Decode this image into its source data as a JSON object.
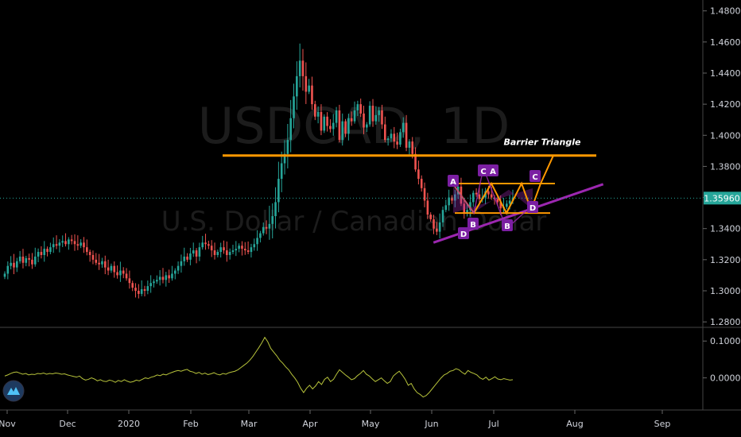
{
  "chart_data": {
    "type": "candlestick",
    "symbol_watermark": "USDCAD, 1D",
    "name_watermark": "U.S. Dollar / Canadian Dollar",
    "price_axis": {
      "ticks": [
        "1.48000",
        "1.46000",
        "1.44000",
        "1.42000",
        "1.40000",
        "1.38000",
        "1.36000",
        "1.34000",
        "1.32000",
        "1.30000",
        "1.28000"
      ],
      "ylim": [
        1.277,
        1.487
      ],
      "current_price": "1.35960"
    },
    "oscillator_axis": {
      "ticks": [
        "0.10000",
        "0.00000"
      ],
      "ylim": [
        -0.085,
        0.135
      ]
    },
    "time_axis": {
      "labels": [
        "Nov",
        "Dec",
        "2020",
        "Feb",
        "Mar",
        "Apr",
        "May",
        "Jun",
        "Jul",
        "Aug",
        "Sep"
      ]
    },
    "price_closes": [
      1.311,
      1.316,
      1.318,
      1.315,
      1.319,
      1.322,
      1.318,
      1.321,
      1.32,
      1.317,
      1.322,
      1.325,
      1.323,
      1.327,
      1.325,
      1.328,
      1.33,
      1.329,
      1.331,
      1.332,
      1.33,
      1.333,
      1.332,
      1.33,
      1.329,
      1.331,
      1.328,
      1.325,
      1.323,
      1.32,
      1.318,
      1.317,
      1.319,
      1.315,
      1.313,
      1.316,
      1.312,
      1.31,
      1.313,
      1.311,
      1.308,
      1.305,
      1.302,
      1.3,
      1.298,
      1.301,
      1.3,
      1.303,
      1.305,
      1.306,
      1.307,
      1.309,
      1.307,
      1.31,
      1.308,
      1.311,
      1.313,
      1.316,
      1.319,
      1.322,
      1.32,
      1.324,
      1.326,
      1.322,
      1.328,
      1.331,
      1.33,
      1.329,
      1.326,
      1.323,
      1.325,
      1.328,
      1.326,
      1.323,
      1.325,
      1.326,
      1.327,
      1.329,
      1.327,
      1.326,
      1.325,
      1.328,
      1.33,
      1.334,
      1.337,
      1.341,
      1.34,
      1.343,
      1.348,
      1.357,
      1.372,
      1.382,
      1.388,
      1.397,
      1.411,
      1.425,
      1.438,
      1.448,
      1.438,
      1.428,
      1.432,
      1.42,
      1.412,
      1.415,
      1.403,
      1.412,
      1.406,
      1.404,
      1.408,
      1.416,
      1.397,
      1.409,
      1.401,
      1.411,
      1.409,
      1.416,
      1.42,
      1.414,
      1.405,
      1.407,
      1.419,
      1.409,
      1.413,
      1.416,
      1.407,
      1.397,
      1.398,
      1.401,
      1.396,
      1.394,
      1.402,
      1.408,
      1.392,
      1.396,
      1.388,
      1.378,
      1.372,
      1.366,
      1.358,
      1.349,
      1.346,
      1.34,
      1.338,
      1.344,
      1.352,
      1.355,
      1.36,
      1.358,
      1.362,
      1.367,
      1.356,
      1.35,
      1.352,
      1.357,
      1.363,
      1.362,
      1.359,
      1.36,
      1.364,
      1.362,
      1.36,
      1.359,
      1.357,
      1.353,
      1.354,
      1.356,
      1.358,
      1.36
    ],
    "oscillator_values": [
      0.005,
      0.008,
      0.012,
      0.015,
      0.016,
      0.013,
      0.01,
      0.012,
      0.008,
      0.01,
      0.009,
      0.012,
      0.011,
      0.013,
      0.01,
      0.012,
      0.011,
      0.013,
      0.012,
      0.01,
      0.011,
      0.008,
      0.006,
      0.004,
      0.002,
      0.005,
      -0.002,
      -0.006,
      -0.004,
      0.0,
      -0.003,
      -0.008,
      -0.005,
      -0.009,
      -0.01,
      -0.006,
      -0.008,
      -0.012,
      -0.007,
      -0.01,
      -0.005,
      -0.009,
      -0.012,
      -0.01,
      -0.006,
      -0.008,
      -0.004,
      0.0,
      -0.002,
      0.002,
      0.004,
      0.008,
      0.006,
      0.01,
      0.008,
      0.012,
      0.015,
      0.018,
      0.02,
      0.018,
      0.021,
      0.023,
      0.018,
      0.016,
      0.012,
      0.015,
      0.01,
      0.013,
      0.009,
      0.011,
      0.014,
      0.01,
      0.008,
      0.012,
      0.01,
      0.014,
      0.016,
      0.018,
      0.022,
      0.028,
      0.034,
      0.04,
      0.048,
      0.058,
      0.07,
      0.082,
      0.095,
      0.11,
      0.098,
      0.08,
      0.07,
      0.06,
      0.048,
      0.04,
      0.03,
      0.022,
      0.01,
      0.0,
      -0.012,
      -0.028,
      -0.04,
      -0.028,
      -0.02,
      -0.03,
      -0.022,
      -0.01,
      -0.018,
      -0.004,
      0.002,
      -0.01,
      -0.004,
      0.01,
      0.022,
      0.015,
      0.008,
      0.002,
      -0.005,
      -0.002,
      0.006,
      0.012,
      0.02,
      0.01,
      0.005,
      -0.003,
      -0.01,
      -0.005,
      0.0,
      -0.008,
      -0.015,
      -0.01,
      0.005,
      0.012,
      0.018,
      0.008,
      -0.004,
      -0.02,
      -0.015,
      -0.03,
      -0.04,
      -0.045,
      -0.052,
      -0.048,
      -0.04,
      -0.03,
      -0.02,
      -0.01,
      0.0,
      0.008,
      0.012,
      0.018,
      0.02,
      0.025,
      0.022,
      0.015,
      0.01,
      0.02,
      0.015,
      0.012,
      0.008,
      0.0,
      -0.004,
      0.002,
      -0.006,
      -0.002,
      0.003,
      -0.003,
      -0.005,
      -0.002,
      -0.004,
      -0.006,
      -0.005
    ],
    "annotations": {
      "label": "Barrier Triangle",
      "upper_barrier_price": 1.387,
      "lower_trendline": [
        [
          0.585,
          1.331
        ],
        [
          0.755,
          1.366
        ]
      ],
      "pattern1_points": [
        [
          "A",
          1.367
        ],
        [
          "B",
          1.349
        ],
        [
          "C",
          1.378
        ],
        [
          "D",
          1.337
        ]
      ],
      "pattern2_points": [
        [
          "C",
          1.381
        ],
        [
          "A",
          1.378
        ],
        [
          "B",
          1.339
        ],
        [
          "D",
          1.354
        ],
        [
          "C",
          1.376
        ]
      ]
    }
  },
  "colors": {
    "up": "#26a69a",
    "down": "#ef5350",
    "orange": "#ff9800",
    "purple": "#9c27b0",
    "purple_badge": "#7b1fa2",
    "oscillator": "#b7c33b",
    "price_line": "#26a69a",
    "grid": "#1f1f1f",
    "axis_text": "#d1d4dc"
  },
  "icons": [
    "tradingview-logo-icon"
  ]
}
